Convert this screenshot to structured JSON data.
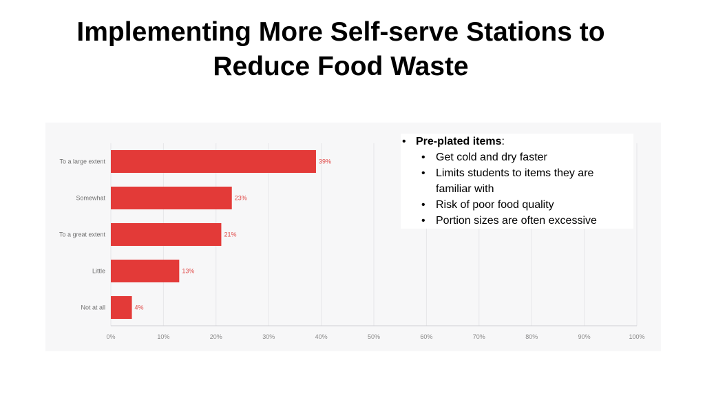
{
  "slide": {
    "title_line1": "Implementing More Self-serve Stations to",
    "title_line2": "Reduce Food Waste"
  },
  "notes": {
    "heading": "Pre-plated items",
    "heading_suffix": ":",
    "items": [
      "Get cold and dry faster",
      "Limits students to items they are familiar with",
      "Risk of poor food quality",
      "Portion sizes are often excessive"
    ]
  },
  "chart_data": {
    "type": "bar",
    "orientation": "horizontal",
    "categories": [
      "To a large extent",
      "Somewhat",
      "To a great extent",
      "Little",
      "Not at all"
    ],
    "values": [
      39,
      23,
      21,
      13,
      4
    ],
    "value_labels": [
      "39%",
      "23%",
      "21%",
      "13%",
      "4%"
    ],
    "xlim": [
      0,
      100
    ],
    "x_ticks": [
      0,
      10,
      20,
      30,
      40,
      50,
      60,
      70,
      80,
      90,
      100
    ],
    "x_tick_labels": [
      "0%",
      "10%",
      "20%",
      "30%",
      "40%",
      "50%",
      "60%",
      "70%",
      "80%",
      "90%",
      "100%"
    ],
    "grid": true,
    "bar_color": "#e33a38",
    "label_color": "#e04846",
    "grid_color": "#e6e6e9"
  }
}
